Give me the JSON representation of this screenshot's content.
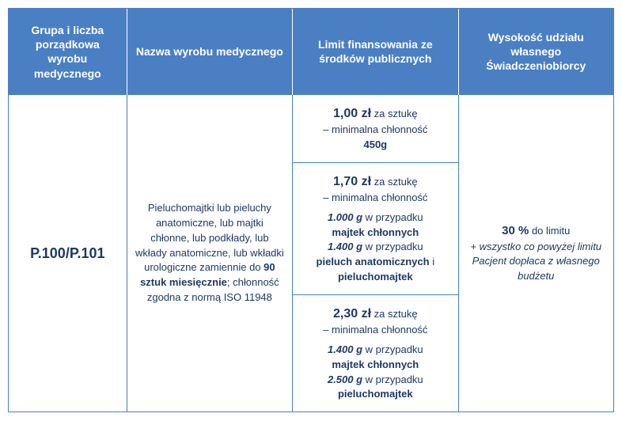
{
  "colors": {
    "header_bg": "#4a7fc4",
    "header_text": "#ffffff",
    "body_text": "#1f3864",
    "border": "#4a7fc4"
  },
  "headers": {
    "col1": "Grupa i liczba porządkowa wyrobu medycznego",
    "col2": "Nazwa wyrobu medycznego",
    "col3": "Limit finansowania ze środków publicznych",
    "col4": "Wysokość udziału własnego Świadczeniobiorcy"
  },
  "row": {
    "code": "P.100/P.101",
    "product_desc_pre": "Pieluchomajtki lub pieluchy anatomiczne, lub majtki chłonne, lub podkłady, lub wkłady anatomiczne, lub wkładki urologiczne zamiennie do ",
    "product_limit": "90 sztuk miesięcznie",
    "product_desc_post": "; chłonność zgodna z normą ISO 11948",
    "price1": {
      "amount": "1,00 zł",
      "per": " za sztukę",
      "min_label": "– minimalna chłonność",
      "min_value": "450g"
    },
    "price2": {
      "amount": "1,70 zł",
      "per": " za sztukę",
      "min_label": "– minimalna chłonność",
      "v1": "1.000 g",
      "v1_case": " w przypadku ",
      "v1_item": "majtek chłonnych",
      "v2": "1.400 g",
      "v2_case": " w przypadku ",
      "v2_item": "pieluch anatomicznych",
      "v2_and": " i ",
      "v2_item2": "pieluchomajtek"
    },
    "price3": {
      "amount": "2,30 zł",
      "per": " za sztukę",
      "min_label": "– minimalna chłonność",
      "v1": "1.400 g",
      "v1_case": " w przypadku ",
      "v1_item": "majtek chłonnych",
      "v2": "2.500 g",
      "v2_case": " w przypadku ",
      "v2_item": "pieluchomajtek"
    },
    "own_share": {
      "percent": "30 %",
      "to_limit": " do limitu",
      "note": "+ wszystko co powyżej limitu Pacjent dopłaca z własnego budżetu"
    }
  }
}
